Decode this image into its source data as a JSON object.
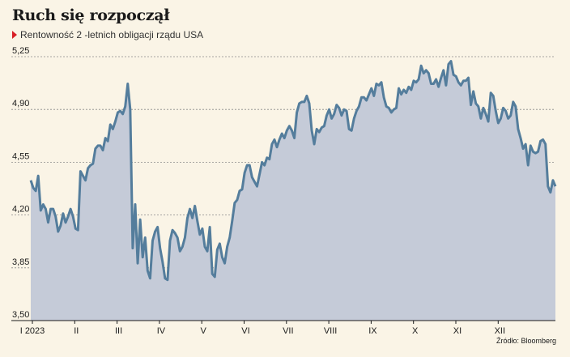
{
  "title": "Ruch się rozpoczął",
  "subtitle": "Rentowność 2 -letnich obligacji rządu USA",
  "source": "Źródło: Bloomberg",
  "colors": {
    "line": "#547d9c",
    "fill": "#c5cbd8",
    "accent": "#d81f26"
  },
  "chart_data": {
    "type": "area",
    "title": "Ruch się rozpoczął",
    "subtitle": "Rentowność 2 -letnich obligacji rządu USA",
    "ylim": [
      3.5,
      5.25
    ],
    "yticks": [
      "3,50",
      "3,85",
      "4,20",
      "4,55",
      "4,90",
      "5,25"
    ],
    "ytick_values": [
      3.5,
      3.85,
      4.2,
      4.55,
      4.9,
      5.25
    ],
    "xticks": [
      "I 2023",
      "II",
      "III",
      "IV",
      "V",
      "VI",
      "VII",
      "VIII",
      "IX",
      "X",
      "XI",
      "XII"
    ],
    "grid": true,
    "series": [
      {
        "values": [
          4.43,
          4.38,
          4.36,
          4.46,
          4.23,
          4.27,
          4.24,
          4.15,
          4.24,
          4.24,
          4.19,
          4.09,
          4.13,
          4.21,
          4.15,
          4.19,
          4.24,
          4.19,
          4.11,
          4.1,
          4.49,
          4.46,
          4.43,
          4.51,
          4.53,
          4.54,
          4.64,
          4.66,
          4.66,
          4.63,
          4.71,
          4.69,
          4.8,
          4.77,
          4.82,
          4.88,
          4.89,
          4.87,
          4.92,
          5.07,
          4.9,
          3.98,
          4.27,
          3.88,
          4.17,
          3.92,
          4.05,
          3.83,
          3.78,
          4.03,
          4.09,
          4.12,
          3.98,
          3.89,
          3.78,
          3.77,
          4.03,
          4.1,
          4.08,
          4.05,
          3.96,
          3.99,
          4.05,
          4.18,
          4.24,
          4.18,
          4.26,
          4.16,
          4.07,
          4.11,
          3.99,
          3.96,
          4.12,
          3.81,
          3.79,
          3.97,
          4.01,
          3.92,
          3.88,
          3.99,
          4.05,
          4.16,
          4.28,
          4.3,
          4.36,
          4.37,
          4.48,
          4.53,
          4.53,
          4.45,
          4.42,
          4.39,
          4.47,
          4.55,
          4.53,
          4.58,
          4.57,
          4.67,
          4.7,
          4.65,
          4.7,
          4.74,
          4.71,
          4.76,
          4.79,
          4.76,
          4.71,
          4.88,
          4.94,
          4.95,
          4.95,
          4.99,
          4.94,
          4.76,
          4.67,
          4.77,
          4.75,
          4.78,
          4.79,
          4.86,
          4.9,
          4.84,
          4.87,
          4.93,
          4.91,
          4.86,
          4.9,
          4.89,
          4.77,
          4.76,
          4.84,
          4.89,
          4.92,
          4.98,
          4.98,
          4.96,
          5.0,
          5.04,
          4.99,
          5.07,
          5.06,
          5.08,
          4.98,
          4.92,
          4.91,
          4.88,
          4.9,
          4.91,
          5.04,
          5.0,
          5.03,
          5.01,
          5.05,
          5.03,
          5.09,
          5.08,
          5.1,
          5.19,
          5.14,
          5.16,
          5.14,
          5.07,
          5.07,
          5.1,
          5.05,
          5.11,
          5.16,
          5.06,
          5.2,
          5.22,
          5.13,
          5.12,
          5.08,
          5.06,
          5.09,
          5.09,
          5.11,
          4.93,
          5.02,
          4.94,
          4.92,
          4.84,
          4.91,
          4.87,
          4.82,
          5.01,
          4.99,
          4.89,
          4.81,
          4.84,
          4.91,
          4.89,
          4.84,
          4.86,
          4.95,
          4.92,
          4.77,
          4.71,
          4.64,
          4.67,
          4.53,
          4.66,
          4.62,
          4.61,
          4.62,
          4.69,
          4.7,
          4.67,
          4.39,
          4.35,
          4.43,
          4.39
        ]
      }
    ]
  }
}
